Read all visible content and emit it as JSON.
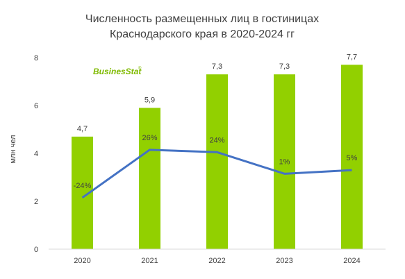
{
  "chart_data": {
    "type": "bar",
    "title_lines": [
      "Численность размещенных лиц в гостиницах",
      "Краснодарского края в 2020-2024 гг"
    ],
    "ylabel": "млн чел",
    "categories": [
      "2020",
      "2021",
      "2022",
      "2023",
      "2024"
    ],
    "values": [
      4.7,
      5.9,
      7.3,
      7.3,
      7.7
    ],
    "value_labels": [
      "4,7",
      "5,9",
      "7,3",
      "7,3",
      "7,7"
    ],
    "ylim": [
      0,
      8
    ],
    "yticks": [
      "0",
      "2",
      "4",
      "6",
      "8"
    ],
    "growth_line": {
      "values": [
        2.15,
        4.15,
        4.05,
        3.15,
        3.3
      ],
      "labels": [
        "-24%",
        "26%",
        "24%",
        "1%",
        "5%"
      ],
      "color": "#4472c4"
    },
    "bar_color": "#92d000",
    "grid": false
  },
  "logo": {
    "text": "BusinesStat",
    "mark": "®"
  }
}
